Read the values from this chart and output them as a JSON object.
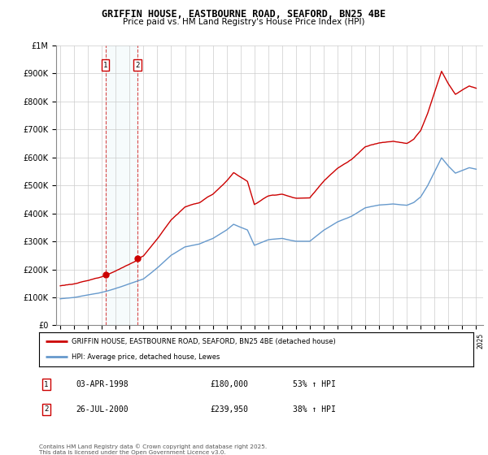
{
  "title": "GRIFFIN HOUSE, EASTBOURNE ROAD, SEAFORD, BN25 4BE",
  "subtitle": "Price paid vs. HM Land Registry's House Price Index (HPI)",
  "legend_line1": "GRIFFIN HOUSE, EASTBOURNE ROAD, SEAFORD, BN25 4BE (detached house)",
  "legend_line2": "HPI: Average price, detached house, Lewes",
  "footer": "Contains HM Land Registry data © Crown copyright and database right 2025.\nThis data is licensed under the Open Government Licence v3.0.",
  "transactions": [
    {
      "num": 1,
      "date": "03-APR-1998",
      "price": "£180,000",
      "hpi": "53% ↑ HPI"
    },
    {
      "num": 2,
      "date": "26-JUL-2000",
      "price": "£239,950",
      "hpi": "38% ↑ HPI"
    }
  ],
  "sale1_year": 1998.25,
  "sale1_price": 180000,
  "sale2_year": 2000.56,
  "sale2_price": 239950,
  "red_color": "#cc0000",
  "blue_color": "#6699cc",
  "background_color": "#ffffff",
  "grid_color": "#cccccc",
  "ylim": [
    0,
    1000000
  ],
  "xlim_start": 1994.7,
  "xlim_end": 2025.5
}
